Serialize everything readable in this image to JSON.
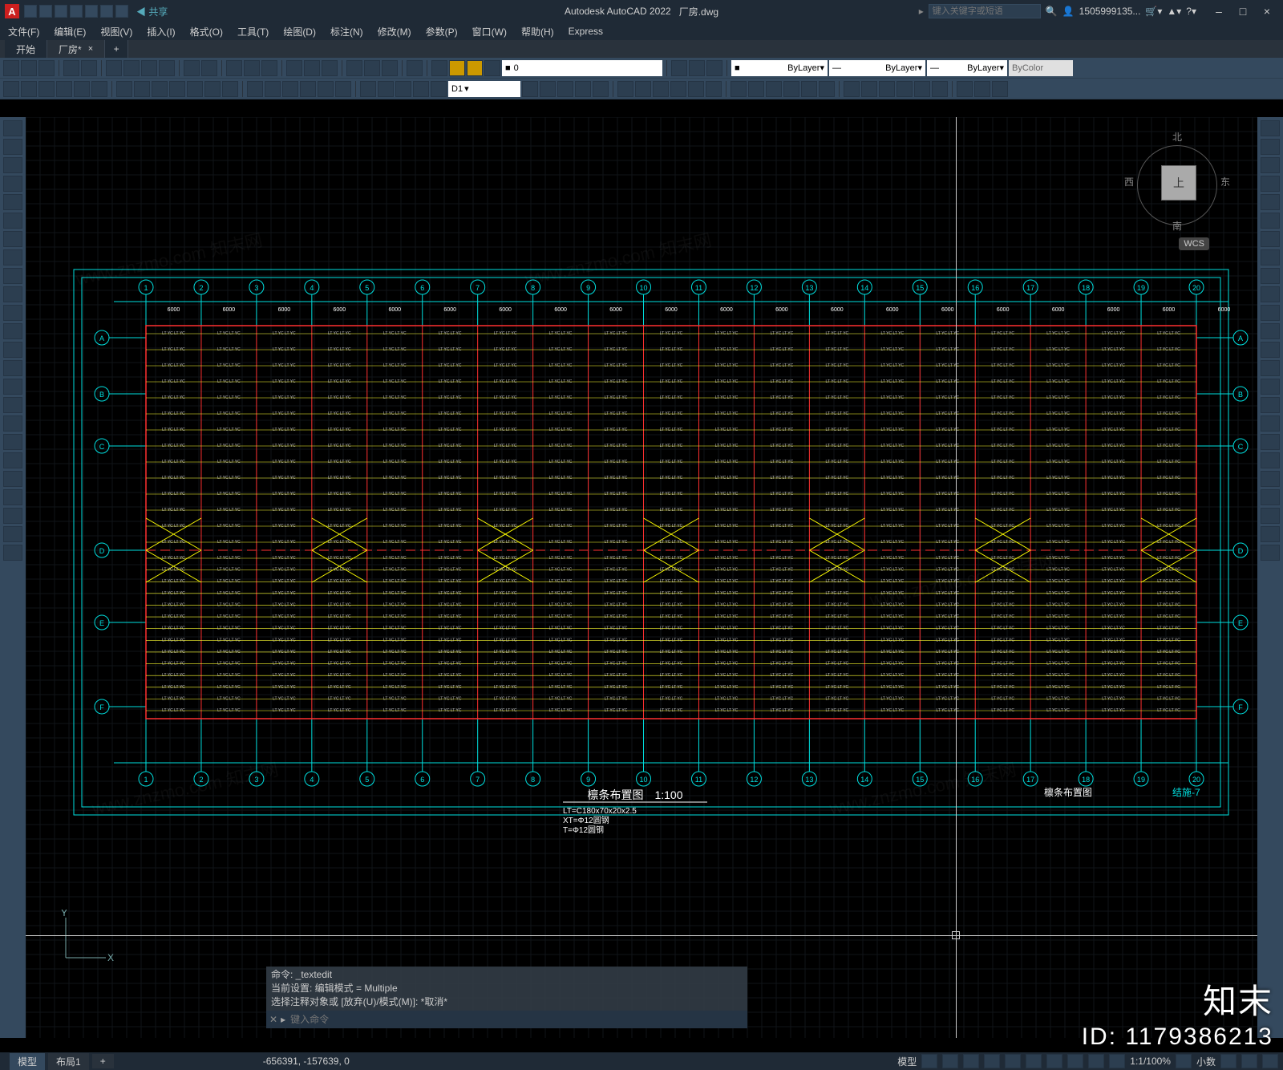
{
  "app": {
    "logo": "A",
    "title": "Autodesk AutoCAD 2022",
    "filename": "厂房.dwg",
    "share_label": "共享"
  },
  "search": {
    "placeholder": "键入关键字或短语"
  },
  "user": {
    "name": "1505999135..."
  },
  "window_controls": {
    "min": "–",
    "max": "□",
    "close": "×"
  },
  "menubar": [
    "文件(F)",
    "编辑(E)",
    "视图(V)",
    "插入(I)",
    "格式(O)",
    "工具(T)",
    "绘图(D)",
    "标注(N)",
    "修改(M)",
    "参数(P)",
    "窗口(W)",
    "帮助(H)",
    "Express"
  ],
  "tabs": {
    "start": "开始",
    "file": "厂房*",
    "plus": "+"
  },
  "props": {
    "layer_current": "0",
    "layer_drop": "ByLayer",
    "lineweight": "ByLayer",
    "linetype": "ByLayer",
    "color": "ByColor",
    "dim_style": "D1"
  },
  "viewcube": {
    "top": "上",
    "n": "北",
    "s": "南",
    "e": "东",
    "w": "西",
    "wcs": "WCS"
  },
  "drawing": {
    "title": "檩条布置图",
    "scale": "1:100",
    "note1": "LT=C180x70x20x2.5",
    "note2": "XT=Φ12圆钢",
    "note3": "T=Φ12圆钢",
    "title2": "檩条布置图",
    "sheet": "结施-7",
    "grid_cols": 20,
    "grid_rows_labels": [
      "A",
      "B",
      "C",
      "D",
      "E",
      "F"
    ],
    "member_label": "LT  YC LT YC",
    "colors": {
      "border": "#00e0e0",
      "grid_bubble": "#00e0e0",
      "axis": "#ff3030",
      "purlin": "#ffff30",
      "brace": "#ffff00",
      "ridge": "#ff3030",
      "text": "#c0c0c0",
      "dim": "#ffffff"
    },
    "canvas_bg": "#000000",
    "minor_grid": "#101418"
  },
  "command": {
    "hist1": "命令: _textedit",
    "hist2": "当前设置: 编辑模式 = Multiple",
    "hist3": "选择注释对象或 [放弃(U)/模式(M)]: *取消*",
    "prompt": "▸",
    "placeholder": "键入命令"
  },
  "layout_tabs": {
    "model": "模型",
    "layout1": "布局1",
    "plus": "+"
  },
  "status": {
    "coords": "-656391, -157639, 0",
    "mode": "模型",
    "grid": "#",
    "scale": "1:1/100%",
    "decimal": "小数",
    "ortho": "⊞"
  },
  "watermark": {
    "brand": "知末",
    "id": "ID: 1179386213",
    "diag": "www.znzmo.com   知末网"
  }
}
